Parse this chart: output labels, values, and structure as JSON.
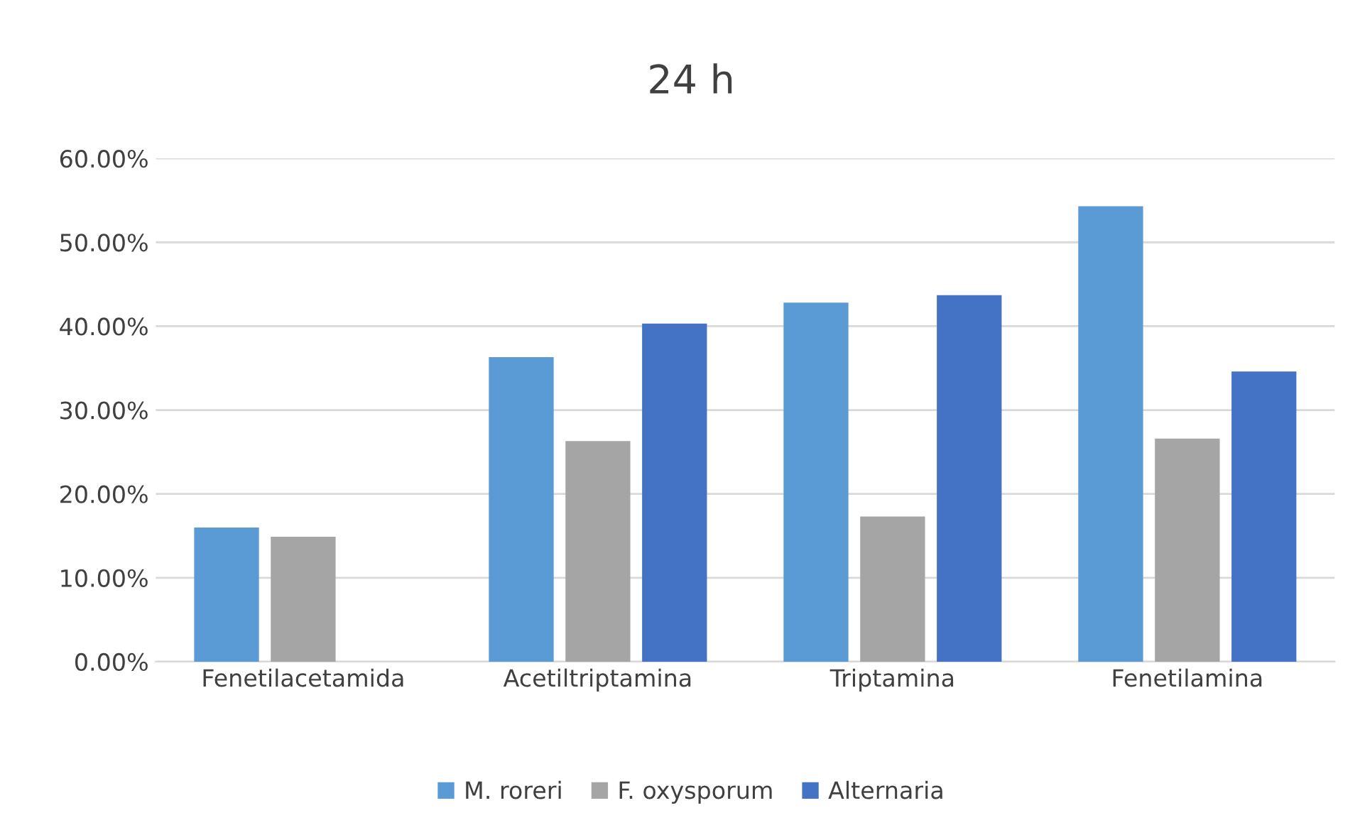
{
  "chart_data": {
    "type": "bar",
    "title": "24 h",
    "categories": [
      "Fenetilacetamida",
      "Acetiltriptamina",
      "Triptamina",
      "Fenetilamina"
    ],
    "series": [
      {
        "name": "M. roreri",
        "color": "#5b9bd5",
        "values": [
          16.0,
          36.3,
          42.8,
          54.3
        ]
      },
      {
        "name": "F. oxysporum",
        "color": "#a5a5a5",
        "values": [
          14.9,
          26.3,
          17.3,
          26.6
        ]
      },
      {
        "name": "Alternaria",
        "color": "#4472c4",
        "values": [
          0,
          40.3,
          43.7,
          34.6
        ]
      }
    ],
    "ylim": [
      0,
      60
    ],
    "yticks": [
      {
        "value": 0,
        "label": "0.00%"
      },
      {
        "value": 10,
        "label": "10.00%"
      },
      {
        "value": 20,
        "label": "20.00%"
      },
      {
        "value": 30,
        "label": "30.00%"
      },
      {
        "value": 40,
        "label": "40.00%"
      },
      {
        "value": 50,
        "label": "50.00%"
      },
      {
        "value": 60,
        "label": "60.00%"
      }
    ],
    "grid": "y",
    "legend": "bottom"
  }
}
